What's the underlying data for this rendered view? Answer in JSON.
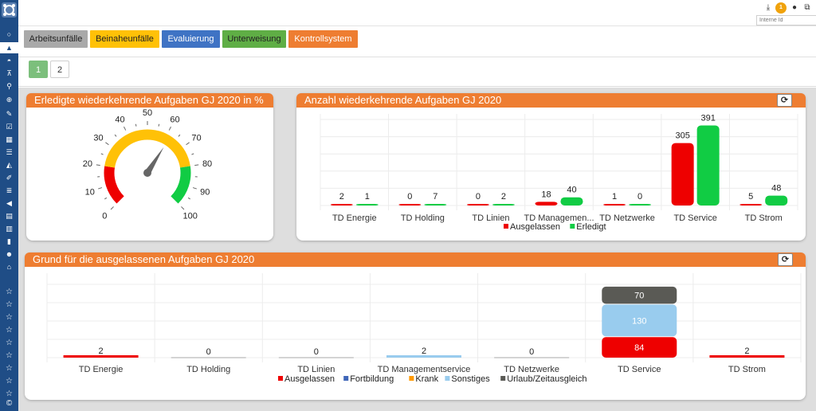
{
  "topbar": {
    "search_placeholder": "Interne Id",
    "notification_count": "1"
  },
  "nav": {
    "buttons": [
      {
        "label": "Arbeitsunfälle",
        "bg": "#a9a9a9",
        "color": "#222222"
      },
      {
        "label": "Beinaheunfälle",
        "bg": "#ffc107",
        "color": "#222222"
      },
      {
        "label": "Evaluierung",
        "bg": "#3f73c4",
        "color": "#ffffff"
      },
      {
        "label": "Unterweisung",
        "bg": "#5fae45",
        "color": "#222222"
      },
      {
        "label": "Kontrollsystem",
        "bg": "#ee7d31",
        "color": "#ffffff"
      }
    ]
  },
  "pager": {
    "pages": [
      "1",
      "2"
    ],
    "active": "1"
  },
  "colors": {
    "accent": "#ee7d31",
    "sidebar": "#1f4d86",
    "red": "#ee0000",
    "green": "#11cc44",
    "yellow": "#ffc107"
  },
  "gauge": {
    "title": "Erledigte wiederkehrende Aufgaben GJ 2020 in %",
    "ticks": [
      "0",
      "10",
      "20",
      "30",
      "40",
      "50",
      "60",
      "70",
      "80",
      "90",
      "100"
    ],
    "value": 62
  },
  "chart_data": [
    {
      "type": "bar",
      "title": "Anzahl wiederkehrende Aufgaben GJ 2020",
      "categories": [
        "TD Energie",
        "TD Holding",
        "TD Linien",
        "TD Managemen...",
        "TD Netzwerke",
        "TD Service",
        "TD Strom"
      ],
      "series": [
        {
          "name": "Ausgelassen",
          "color": "#ee0000",
          "values": [
            2,
            0,
            0,
            18,
            1,
            305,
            5
          ]
        },
        {
          "name": "Erledigt",
          "color": "#11cc44",
          "values": [
            1,
            7,
            2,
            40,
            0,
            391,
            48
          ]
        }
      ],
      "ylim": [
        0,
        420
      ],
      "grid": true,
      "legend": "bottom"
    },
    {
      "type": "bar",
      "stacked": true,
      "title": "Grund für die ausgelassenen Aufgaben GJ 2020",
      "categories": [
        "TD Energie",
        "TD Holding",
        "TD Linien",
        "TD Managementservice",
        "TD Netzwerke",
        "TD Service",
        "TD Strom"
      ],
      "totals": [
        2,
        0,
        0,
        2,
        0,
        284,
        2
      ],
      "series": [
        {
          "name": "Ausgelassen",
          "color": "#ee0000",
          "values": [
            2,
            0,
            0,
            0,
            0,
            84,
            2
          ]
        },
        {
          "name": "Fortbildung",
          "color": "#3f66b8",
          "values": [
            0,
            0,
            0,
            0,
            0,
            0,
            0
          ]
        },
        {
          "name": "Krank",
          "color": "#ff9900",
          "values": [
            0,
            0,
            0,
            0,
            0,
            0,
            0
          ]
        },
        {
          "name": "Sonstiges",
          "color": "#99ccee",
          "values": [
            0,
            0,
            0,
            2,
            0,
            130,
            0
          ]
        },
        {
          "name": "Urlaub/Zeitausgleich",
          "color": "#5a5a55",
          "values": [
            0,
            0,
            0,
            0,
            0,
            70,
            0
          ]
        }
      ],
      "ylim": [
        0,
        300
      ],
      "grid": true,
      "legend": "bottom"
    }
  ]
}
